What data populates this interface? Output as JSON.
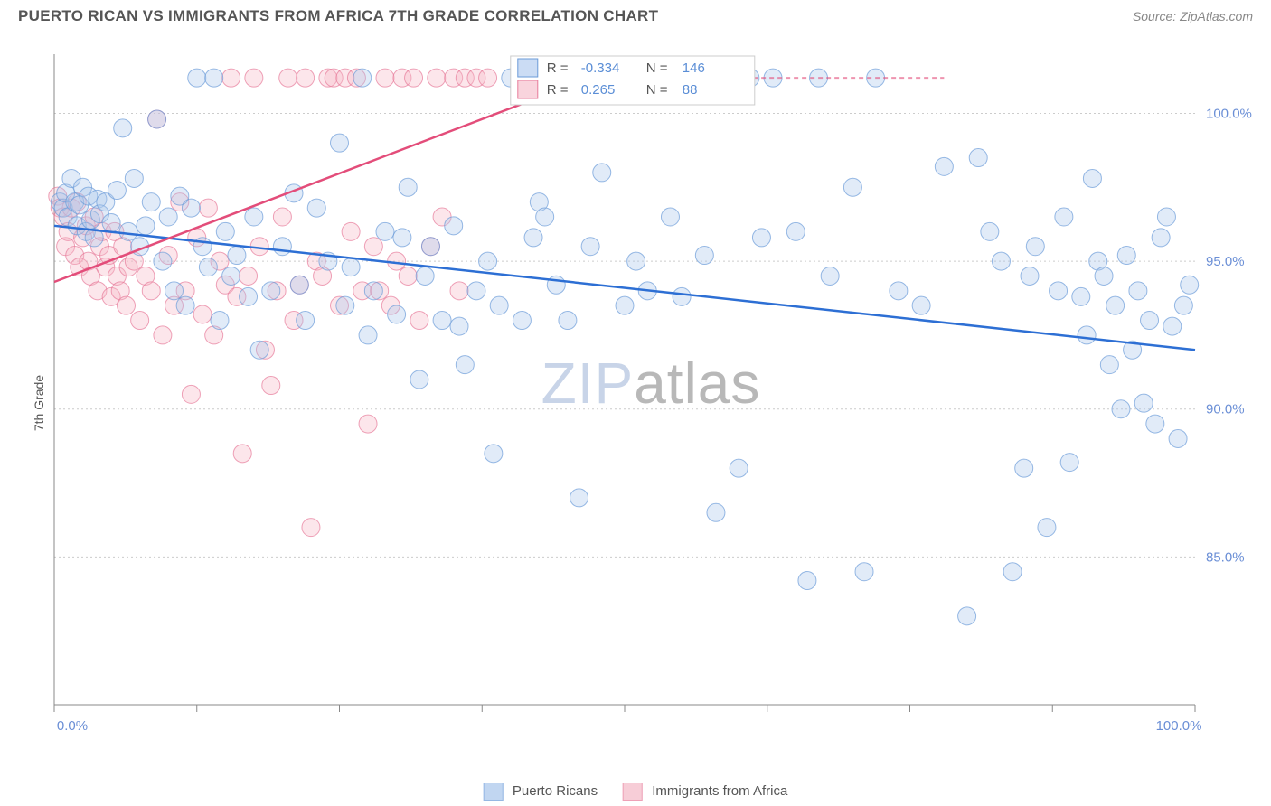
{
  "header": {
    "title": "PUERTO RICAN VS IMMIGRANTS FROM AFRICA 7TH GRADE CORRELATION CHART",
    "source": "Source: ZipAtlas.com"
  },
  "ylabel": "7th Grade",
  "watermark_zip": "ZIP",
  "watermark_atlas": "atlas",
  "chart": {
    "type": "scatter",
    "xlim": [
      0,
      100
    ],
    "ylim": [
      80,
      102
    ],
    "background_color": "#ffffff",
    "grid_color": "#cccccc",
    "axis_color": "#888888",
    "ytick_labels": [
      "85.0%",
      "90.0%",
      "95.0%",
      "100.0%"
    ],
    "ytick_values": [
      85,
      90,
      95,
      100
    ],
    "xtick_labels": [
      "0.0%",
      "100.0%"
    ],
    "xtick_values": [
      0,
      100
    ],
    "xtick_minor": [
      0,
      12.5,
      25,
      37.5,
      50,
      62.5,
      75,
      87.5,
      100
    ],
    "marker_radius": 10,
    "marker_opacity": 0.35,
    "series": [
      {
        "name": "Puerto Ricans",
        "color_fill": "#a8c5ec",
        "color_stroke": "#6b9bd8",
        "trend_color": "#2d6fd4",
        "R": "-0.334",
        "N": "146",
        "trend": {
          "x1": 0,
          "y1": 96.2,
          "x2": 100,
          "y2": 92.0,
          "dash_after": 100
        },
        "points": [
          [
            0.5,
            97.0
          ],
          [
            0.8,
            96.8
          ],
          [
            1.0,
            97.3
          ],
          [
            1.2,
            96.5
          ],
          [
            1.5,
            97.8
          ],
          [
            1.8,
            97.0
          ],
          [
            2.0,
            96.2
          ],
          [
            2.2,
            96.9
          ],
          [
            2.5,
            97.5
          ],
          [
            2.8,
            96.0
          ],
          [
            3.0,
            97.2
          ],
          [
            3.2,
            96.4
          ],
          [
            3.5,
            95.8
          ],
          [
            3.8,
            97.1
          ],
          [
            4.0,
            96.6
          ],
          [
            4.5,
            97.0
          ],
          [
            5.0,
            96.3
          ],
          [
            5.5,
            97.4
          ],
          [
            6.0,
            99.5
          ],
          [
            6.5,
            96.0
          ],
          [
            7.0,
            97.8
          ],
          [
            7.5,
            95.5
          ],
          [
            8.0,
            96.2
          ],
          [
            8.5,
            97.0
          ],
          [
            9.0,
            99.8
          ],
          [
            9.5,
            95.0
          ],
          [
            10.0,
            96.5
          ],
          [
            10.5,
            94.0
          ],
          [
            11.0,
            97.2
          ],
          [
            11.5,
            93.5
          ],
          [
            12.0,
            96.8
          ],
          [
            12.5,
            101.2
          ],
          [
            13.0,
            95.5
          ],
          [
            13.5,
            94.8
          ],
          [
            14.0,
            101.2
          ],
          [
            14.5,
            93.0
          ],
          [
            15.0,
            96.0
          ],
          [
            15.5,
            94.5
          ],
          [
            16.0,
            95.2
          ],
          [
            17.0,
            93.8
          ],
          [
            17.5,
            96.5
          ],
          [
            18.0,
            92.0
          ],
          [
            19.0,
            94.0
          ],
          [
            20.0,
            95.5
          ],
          [
            21.0,
            97.3
          ],
          [
            21.5,
            94.2
          ],
          [
            22.0,
            93.0
          ],
          [
            23.0,
            96.8
          ],
          [
            24.0,
            95.0
          ],
          [
            25.0,
            99.0
          ],
          [
            25.5,
            93.5
          ],
          [
            26.0,
            94.8
          ],
          [
            27.0,
            101.2
          ],
          [
            27.5,
            92.5
          ],
          [
            28.0,
            94.0
          ],
          [
            29.0,
            96.0
          ],
          [
            30.0,
            93.2
          ],
          [
            30.5,
            95.8
          ],
          [
            31.0,
            97.5
          ],
          [
            32.0,
            91.0
          ],
          [
            32.5,
            94.5
          ],
          [
            33.0,
            95.5
          ],
          [
            34.0,
            93.0
          ],
          [
            35.0,
            96.2
          ],
          [
            35.5,
            92.8
          ],
          [
            36.0,
            91.5
          ],
          [
            37.0,
            94.0
          ],
          [
            38.0,
            95.0
          ],
          [
            38.5,
            88.5
          ],
          [
            39.0,
            93.5
          ],
          [
            40.0,
            101.2
          ],
          [
            41.0,
            93.0
          ],
          [
            42.0,
            95.8
          ],
          [
            42.5,
            97.0
          ],
          [
            43.0,
            96.5
          ],
          [
            44.0,
            94.2
          ],
          [
            45.0,
            93.0
          ],
          [
            46.0,
            87.0
          ],
          [
            47.0,
            95.5
          ],
          [
            48.0,
            98.0
          ],
          [
            49.0,
            101.2
          ],
          [
            50.0,
            93.5
          ],
          [
            51.0,
            95.0
          ],
          [
            52.0,
            94.0
          ],
          [
            54.0,
            96.5
          ],
          [
            55.0,
            93.8
          ],
          [
            56.0,
            101.2
          ],
          [
            57.0,
            95.2
          ],
          [
            58.0,
            86.5
          ],
          [
            59.0,
            101.2
          ],
          [
            60.0,
            88.0
          ],
          [
            61.0,
            101.2
          ],
          [
            62.0,
            95.8
          ],
          [
            63.0,
            101.2
          ],
          [
            65.0,
            96.0
          ],
          [
            66.0,
            84.2
          ],
          [
            67.0,
            101.2
          ],
          [
            68.0,
            94.5
          ],
          [
            70.0,
            97.5
          ],
          [
            71.0,
            84.5
          ],
          [
            72.0,
            101.2
          ],
          [
            74.0,
            94.0
          ],
          [
            76.0,
            93.5
          ],
          [
            78.0,
            98.2
          ],
          [
            80.0,
            83.0
          ],
          [
            81.0,
            98.5
          ],
          [
            82.0,
            96.0
          ],
          [
            83.0,
            95.0
          ],
          [
            84.0,
            84.5
          ],
          [
            85.0,
            88.0
          ],
          [
            85.5,
            94.5
          ],
          [
            86.0,
            95.5
          ],
          [
            87.0,
            86.0
          ],
          [
            88.0,
            94.0
          ],
          [
            88.5,
            96.5
          ],
          [
            89.0,
            88.2
          ],
          [
            90.0,
            93.8
          ],
          [
            90.5,
            92.5
          ],
          [
            91.0,
            97.8
          ],
          [
            91.5,
            95.0
          ],
          [
            92.0,
            94.5
          ],
          [
            92.5,
            91.5
          ],
          [
            93.0,
            93.5
          ],
          [
            93.5,
            90.0
          ],
          [
            94.0,
            95.2
          ],
          [
            94.5,
            92.0
          ],
          [
            95.0,
            94.0
          ],
          [
            95.5,
            90.2
          ],
          [
            96.0,
            93.0
          ],
          [
            96.5,
            89.5
          ],
          [
            97.0,
            95.8
          ],
          [
            97.5,
            96.5
          ],
          [
            98.0,
            92.8
          ],
          [
            98.5,
            89.0
          ],
          [
            99.0,
            93.5
          ],
          [
            99.5,
            94.2
          ]
        ]
      },
      {
        "name": "Immigrants from Africa",
        "color_fill": "#f5b8c7",
        "color_stroke": "#e77a9a",
        "trend_color": "#e34d7a",
        "R": "0.265",
        "N": "88",
        "trend": {
          "x1": 0,
          "y1": 94.3,
          "x2": 47,
          "y2": 101.2,
          "dash_after": 47
        },
        "trend_dash": {
          "x1": 47,
          "y1": 101.2,
          "x2": 78,
          "y2": 101.2
        },
        "points": [
          [
            0.3,
            97.2
          ],
          [
            0.5,
            96.8
          ],
          [
            0.8,
            96.5
          ],
          [
            1.0,
            95.5
          ],
          [
            1.2,
            96.0
          ],
          [
            1.5,
            96.8
          ],
          [
            1.8,
            95.2
          ],
          [
            2.0,
            97.0
          ],
          [
            2.2,
            94.8
          ],
          [
            2.5,
            95.8
          ],
          [
            2.8,
            96.2
          ],
          [
            3.0,
            95.0
          ],
          [
            3.2,
            94.5
          ],
          [
            3.5,
            96.5
          ],
          [
            3.8,
            94.0
          ],
          [
            4.0,
            95.5
          ],
          [
            4.2,
            96.0
          ],
          [
            4.5,
            94.8
          ],
          [
            4.8,
            95.2
          ],
          [
            5.0,
            93.8
          ],
          [
            5.3,
            96.0
          ],
          [
            5.5,
            94.5
          ],
          [
            5.8,
            94.0
          ],
          [
            6.0,
            95.5
          ],
          [
            6.3,
            93.5
          ],
          [
            6.5,
            94.8
          ],
          [
            7.0,
            95.0
          ],
          [
            7.5,
            93.0
          ],
          [
            8.0,
            94.5
          ],
          [
            8.5,
            94.0
          ],
          [
            9.0,
            99.8
          ],
          [
            9.5,
            92.5
          ],
          [
            10.0,
            95.2
          ],
          [
            10.5,
            93.5
          ],
          [
            11.0,
            97.0
          ],
          [
            11.5,
            94.0
          ],
          [
            12.0,
            90.5
          ],
          [
            12.5,
            95.8
          ],
          [
            13.0,
            93.2
          ],
          [
            13.5,
            96.8
          ],
          [
            14.0,
            92.5
          ],
          [
            14.5,
            95.0
          ],
          [
            15.0,
            94.2
          ],
          [
            15.5,
            101.2
          ],
          [
            16.0,
            93.8
          ],
          [
            16.5,
            88.5
          ],
          [
            17.0,
            94.5
          ],
          [
            17.5,
            101.2
          ],
          [
            18.0,
            95.5
          ],
          [
            18.5,
            92.0
          ],
          [
            19.0,
            90.8
          ],
          [
            19.5,
            94.0
          ],
          [
            20.0,
            96.5
          ],
          [
            20.5,
            101.2
          ],
          [
            21.0,
            93.0
          ],
          [
            21.5,
            94.2
          ],
          [
            22.0,
            101.2
          ],
          [
            22.5,
            86.0
          ],
          [
            23.0,
            95.0
          ],
          [
            23.5,
            94.5
          ],
          [
            24.0,
            101.2
          ],
          [
            24.5,
            101.2
          ],
          [
            25.0,
            93.5
          ],
          [
            25.5,
            101.2
          ],
          [
            26.0,
            96.0
          ],
          [
            26.5,
            101.2
          ],
          [
            27.0,
            94.0
          ],
          [
            27.5,
            89.5
          ],
          [
            28.0,
            95.5
          ],
          [
            28.5,
            94.0
          ],
          [
            29.0,
            101.2
          ],
          [
            29.5,
            93.5
          ],
          [
            30.0,
            95.0
          ],
          [
            30.5,
            101.2
          ],
          [
            31.0,
            94.5
          ],
          [
            31.5,
            101.2
          ],
          [
            32.0,
            93.0
          ],
          [
            33.0,
            95.5
          ],
          [
            33.5,
            101.2
          ],
          [
            34.0,
            96.5
          ],
          [
            35.0,
            101.2
          ],
          [
            35.5,
            94.0
          ],
          [
            36.0,
            101.2
          ],
          [
            37.0,
            101.2
          ],
          [
            38.0,
            101.2
          ]
        ]
      }
    ],
    "legend_top": {
      "R_label": "R =",
      "N_label": "N ="
    },
    "legend_bottom": {
      "items": [
        "Puerto Ricans",
        "Immigrants from Africa"
      ]
    }
  }
}
